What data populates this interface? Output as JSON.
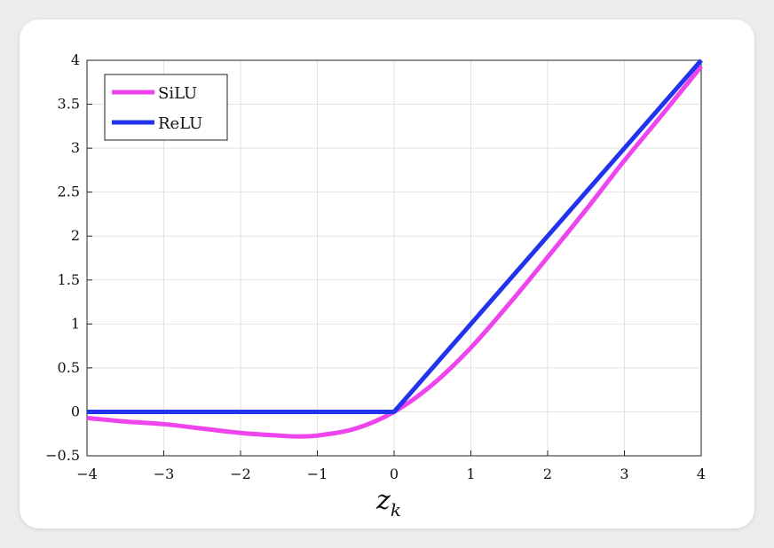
{
  "chart_data": {
    "type": "line",
    "xlabel": "z",
    "xlabel_sub": "k",
    "ylabel": "",
    "title": "",
    "xlim": [
      -4,
      4
    ],
    "ylim": [
      -0.5,
      4
    ],
    "xticks": [
      "−4",
      "−3",
      "−2",
      "−1",
      "0",
      "1",
      "2",
      "3",
      "4"
    ],
    "yticks": [
      "−0.5",
      "0",
      "0.5",
      "1",
      "1.5",
      "2",
      "2.5",
      "3",
      "3.5",
      "4"
    ],
    "grid": true,
    "legend_position": "top-left",
    "series": [
      {
        "name": "SiLU",
        "color": "#ee44ee",
        "x": [
          -4,
          -3.5,
          -3,
          -2.5,
          -2,
          -1.5,
          -1.25,
          -1,
          -0.5,
          0,
          0.5,
          1,
          1.5,
          2,
          2.5,
          3,
          3.5,
          4
        ],
        "y": [
          -0.07,
          -0.11,
          -0.14,
          -0.19,
          -0.24,
          -0.27,
          -0.28,
          -0.27,
          -0.19,
          0,
          0.31,
          0.73,
          1.23,
          1.76,
          2.3,
          2.86,
          3.39,
          3.93
        ]
      },
      {
        "name": "ReLU",
        "color": "#2233ee",
        "x": [
          -4,
          0,
          4
        ],
        "y": [
          0,
          0,
          4
        ]
      }
    ]
  }
}
